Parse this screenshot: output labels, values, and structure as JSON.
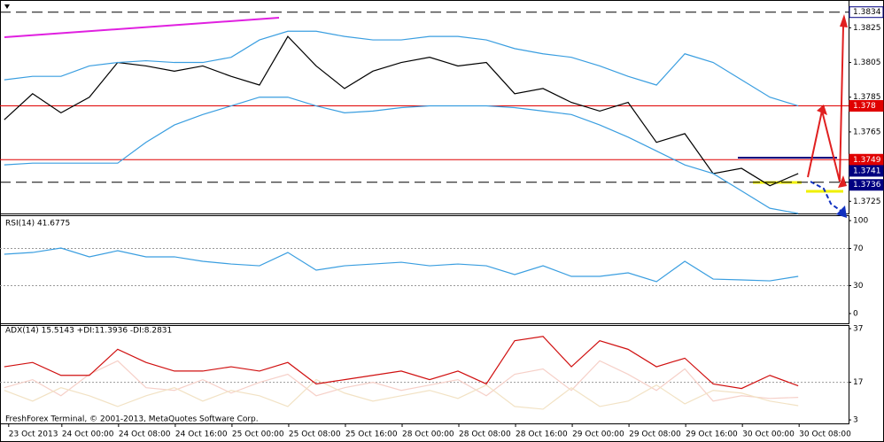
{
  "chart_data": [
    {
      "type": "line",
      "x": [
        0,
        4,
        8,
        12,
        16,
        20,
        24,
        28,
        32,
        36,
        40,
        44,
        48,
        52,
        56,
        60,
        64,
        68,
        72,
        76,
        80,
        84,
        88,
        92,
        96,
        100,
        104,
        108,
        112
      ],
      "xlim": [
        -0.6,
        119.1
      ],
      "ylim": [
        1.3718,
        1.3841
      ],
      "yticks": [
        1.3725,
        1.3765,
        1.3785,
        1.3805,
        1.3825
      ],
      "series": [
        {
          "name": "close",
          "color": "#000000",
          "values": [
            1.3772,
            1.3787,
            1.3776,
            1.3785,
            1.3805,
            1.3803,
            1.38,
            1.3803,
            1.3797,
            1.3792,
            1.382,
            1.3803,
            1.379,
            1.38,
            1.3805,
            1.3808,
            1.3803,
            1.3805,
            1.3787,
            1.379,
            1.3782,
            1.3777,
            1.3782,
            1.3759,
            1.3764,
            1.3741,
            1.3744,
            1.3734,
            1.3741
          ]
        },
        {
          "name": "upper band",
          "color": "#3a9ee0",
          "values": [
            1.3795,
            1.3797,
            1.3797,
            1.3803,
            1.3805,
            1.3806,
            1.3805,
            1.3805,
            1.3808,
            1.3818,
            1.3823,
            1.3823,
            1.382,
            1.3818,
            1.3818,
            1.382,
            1.382,
            1.3818,
            1.3813,
            1.381,
            1.3808,
            1.3803,
            1.3797,
            1.3792,
            1.381,
            1.3805,
            1.3795,
            1.3785,
            1.378
          ]
        },
        {
          "name": "lower band",
          "color": "#3a9ee0",
          "values": [
            1.3746,
            1.3747,
            1.3747,
            1.3747,
            1.3747,
            1.3759,
            1.3769,
            1.3775,
            1.378,
            1.3785,
            1.3785,
            1.378,
            1.3776,
            1.3777,
            1.3779,
            1.378,
            1.378,
            1.378,
            1.3779,
            1.3777,
            1.3775,
            1.3769,
            1.3762,
            1.3754,
            1.3746,
            1.3741,
            1.3731,
            1.3721,
            1.3718
          ]
        }
      ],
      "lines": [
        {
          "value": 1.3834,
          "color": "#000000",
          "style": "dashed"
        },
        {
          "value": 1.378,
          "color": "#e00000",
          "style": "solid"
        },
        {
          "value": 1.3749,
          "color": "#e00000",
          "style": "solid"
        },
        {
          "value": 1.3736,
          "color": "#000000",
          "style": "dashed"
        }
      ],
      "tags": [
        {
          "value": 1.3834,
          "color": "#ffffff"
        },
        {
          "value": 1.378,
          "color": "#e00000"
        },
        {
          "value": 1.3749,
          "color": "#e00000"
        },
        {
          "value": 1.3741,
          "color": "#000080"
        },
        {
          "value": 1.3736,
          "color": "#000080"
        }
      ]
    },
    {
      "type": "line",
      "title": "RSI(14) 41.6775",
      "x": [
        0,
        4,
        8,
        12,
        16,
        20,
        24,
        28,
        32,
        36,
        40,
        44,
        48,
        52,
        56,
        60,
        64,
        68,
        72,
        76,
        80,
        84,
        88,
        92,
        96,
        100,
        104,
        108,
        112
      ],
      "xlim": [
        -0.6,
        119.1
      ],
      "ylim": [
        -10.5,
        104.8
      ],
      "yticks": [
        0,
        30,
        70,
        100
      ],
      "levels": [
        30,
        70
      ],
      "series": [
        {
          "name": "RSI",
          "color": "#3a9ee0",
          "values": [
            63.8,
            65.7,
            70.5,
            61,
            67.6,
            61,
            61,
            56.2,
            53.3,
            51.4,
            65.7,
            46.7,
            51.4,
            53.3,
            55.2,
            51.4,
            53.3,
            51.4,
            41.9,
            51.4,
            40,
            40,
            43.8,
            34.3,
            56.2,
            37.1,
            36.2,
            35.2,
            40
          ]
        }
      ]
    },
    {
      "type": "line",
      "title": "ADX(14) 15.5143 +DI:11.3936 -DI:8.2831",
      "x": [
        0,
        4,
        8,
        12,
        16,
        20,
        24,
        28,
        32,
        36,
        40,
        44,
        48,
        52,
        56,
        60,
        64,
        68,
        72,
        76,
        80,
        84,
        88,
        92,
        96,
        100,
        104,
        108,
        112
      ],
      "xlim": [
        -0.6,
        119.1
      ],
      "ylim": [
        1.7,
        38
      ],
      "yticks": [
        3,
        17,
        37
      ],
      "levels": [
        17
      ],
      "xticks": [
        {
          "value": 0,
          "label": "23 Oct 2013"
        },
        {
          "value": 7.5,
          "label": "24 Oct 00:00"
        },
        {
          "value": 15.5,
          "label": "24 Oct 08:00"
        },
        {
          "value": 23.5,
          "label": "24 Oct 16:00"
        },
        {
          "value": 31.5,
          "label": "25 Oct 00:00"
        },
        {
          "value": 39.5,
          "label": "25 Oct 08:00"
        },
        {
          "value": 47.5,
          "label": "25 Oct 16:00"
        },
        {
          "value": 55.5,
          "label": "28 Oct 00:00"
        },
        {
          "value": 63.5,
          "label": "28 Oct 08:00"
        },
        {
          "value": 71.5,
          "label": "28 Oct 16:00"
        },
        {
          "value": 79.5,
          "label": "29 Oct 00:00"
        },
        {
          "value": 87.5,
          "label": "29 Oct 08:00"
        },
        {
          "value": 95.5,
          "label": "29 Oct 16:00"
        },
        {
          "value": 103.5,
          "label": "30 Oct 00:00"
        },
        {
          "value": 111.5,
          "label": "30 Oct 08:00"
        }
      ],
      "footer": "FreshForex Terminal, © 2001-2013, MetaQuotes Software Corp.",
      "series": [
        {
          "name": "+DI",
          "color": "#f6d0c8",
          "values": [
            15,
            18,
            12,
            20,
            25,
            15,
            14,
            18,
            13,
            17,
            20,
            12,
            15,
            17,
            14,
            16,
            18,
            12,
            20,
            22,
            14,
            25,
            20,
            14,
            22,
            10,
            12,
            11,
            11.4
          ]
        },
        {
          "name": "-DI",
          "color": "#f2e2c4",
          "values": [
            14,
            10,
            15,
            12,
            8,
            12,
            15,
            10,
            14,
            12,
            8,
            18,
            13,
            10,
            12,
            14,
            11,
            16,
            8,
            7,
            15,
            8,
            10,
            16,
            9,
            14,
            13,
            10,
            8.3
          ]
        },
        {
          "name": "ADX",
          "color": "#d01010",
          "values": [
            22.8,
            24.4,
            19.6,
            19.6,
            29.3,
            24.4,
            21.2,
            21.2,
            22.8,
            21.2,
            24.4,
            16.4,
            18,
            19.6,
            21.2,
            18,
            21.2,
            16.4,
            32.5,
            34.1,
            22.8,
            32.5,
            29.3,
            22.8,
            26,
            16.4,
            14.7,
            19.6,
            15.7
          ]
        }
      ]
    }
  ]
}
